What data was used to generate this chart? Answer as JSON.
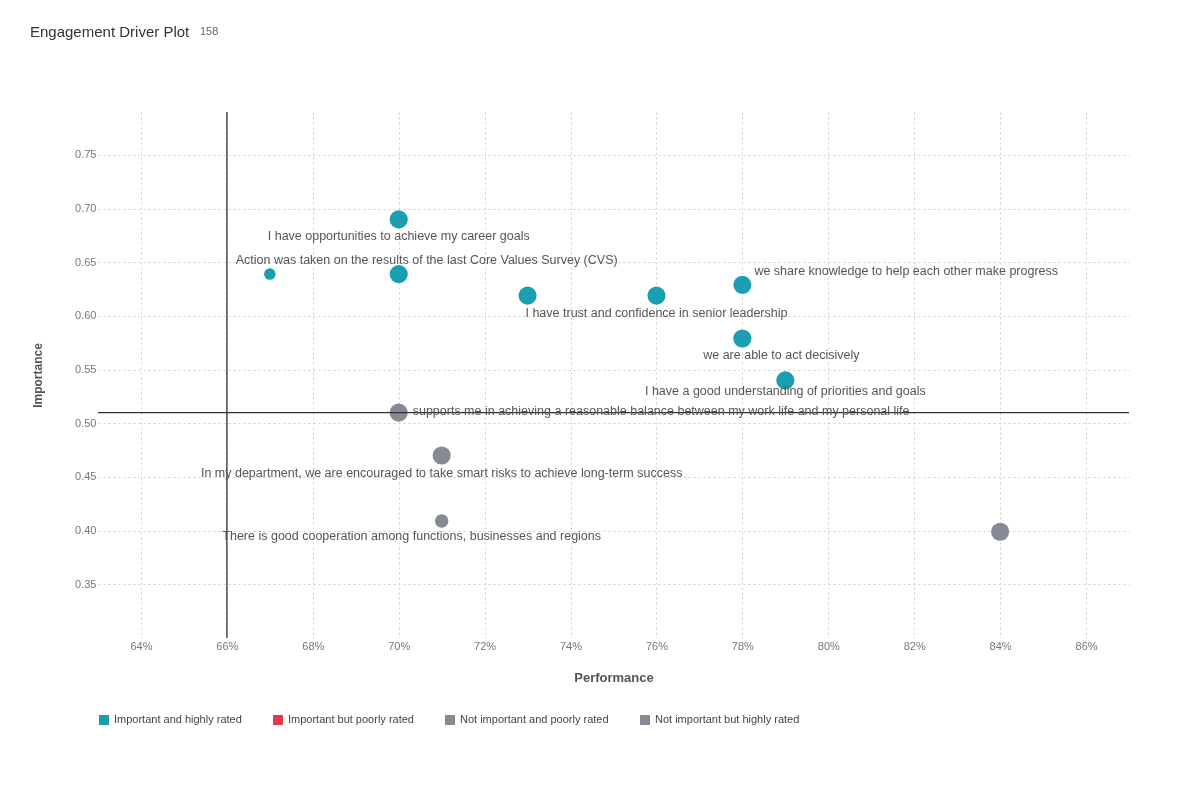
{
  "chart_data": {
    "type": "bubble",
    "title": "Engagement Driver Plot",
    "xlabel": "Performance",
    "ylabel": "Importance",
    "xlim": [
      63,
      87
    ],
    "ylim": [
      0.3,
      0.79
    ],
    "xticks": [
      {
        "value": 64,
        "label": "64%"
      },
      {
        "value": 66,
        "label": "66%"
      },
      {
        "value": 68,
        "label": "68%"
      },
      {
        "value": 70,
        "label": "70%"
      },
      {
        "value": 72,
        "label": "72%"
      },
      {
        "value": 74,
        "label": "74%"
      },
      {
        "value": 76,
        "label": "76%"
      },
      {
        "value": 78,
        "label": "78%"
      },
      {
        "value": 80,
        "label": "80%"
      },
      {
        "value": 82,
        "label": "82%"
      },
      {
        "value": 84,
        "label": "84%"
      },
      {
        "value": 86,
        "label": "86%"
      }
    ],
    "yticks": [
      {
        "value": 0.35,
        "label": "0.35"
      },
      {
        "value": 0.4,
        "label": "0.40"
      },
      {
        "value": 0.45,
        "label": "0.45"
      },
      {
        "value": 0.5,
        "label": "0.50"
      },
      {
        "value": 0.55,
        "label": "0.55"
      },
      {
        "value": 0.6,
        "label": "0.60"
      },
      {
        "value": 0.65,
        "label": "0.65"
      },
      {
        "value": 0.7,
        "label": "0.70"
      },
      {
        "value": 0.75,
        "label": "0.75"
      }
    ],
    "grid": true,
    "legend": "bottom",
    "series": [
      {
        "name": "Important and highly rated",
        "color": "#1a9fb1",
        "x": [
          70,
          67,
          70,
          73,
          76,
          78,
          78,
          79
        ],
        "values": [
          0.69,
          0.639,
          0.639,
          0.619,
          0.619,
          0.629,
          0.579,
          0.54
        ],
        "sizes": [
          1,
          0.4,
          1,
          1,
          1,
          1,
          1,
          1
        ]
      },
      {
        "name": "Important but poorly rated",
        "color": "#e5384f"
      },
      {
        "name": "Not important and poorly rated",
        "color": "#858b94"
      },
      {
        "name": "Not important but highly rated",
        "color": "#858b94",
        "x": [
          70,
          71,
          71,
          84
        ],
        "values": [
          0.51,
          0.47,
          0.409,
          0.399
        ],
        "sizes": [
          1,
          1,
          0.55,
          1
        ]
      }
    ],
    "ref_lines": [
      {
        "axis": "x",
        "value": 66,
        "color": "#333333"
      },
      {
        "axis": "y",
        "value": 0.51,
        "color": "#333333"
      }
    ],
    "annotations": [
      "158",
      {
        "text": "I have opportunities to achieve my career goals",
        "x": 70,
        "y": 0.69
      },
      {
        "text": "Action was taken on the results of the last Core Values Survey (CVS)",
        "x": 70,
        "y": 0.639
      },
      {
        "text": "we share knowledge to help each other make progress",
        "x": 78,
        "y": 0.629
      },
      {
        "text": "I have trust and confidence in senior leadership",
        "x": 76,
        "y": 0.619
      },
      {
        "text": "we are able to act decisively",
        "x": 78,
        "y": 0.579
      },
      {
        "text": "I have a good understanding of priorities and goals",
        "x": 79,
        "y": 0.54
      },
      {
        "text": "supports me in achieving a reasonable balance between my work life and my personal life",
        "x": 70,
        "y": 0.51
      },
      {
        "text": "In my department, we are encouraged to take smart risks to achieve long-term success",
        "x": 71,
        "y": 0.47
      },
      {
        "text": "There is good cooperation among functions, businesses and regions",
        "x": 71,
        "y": 0.409
      }
    ]
  }
}
